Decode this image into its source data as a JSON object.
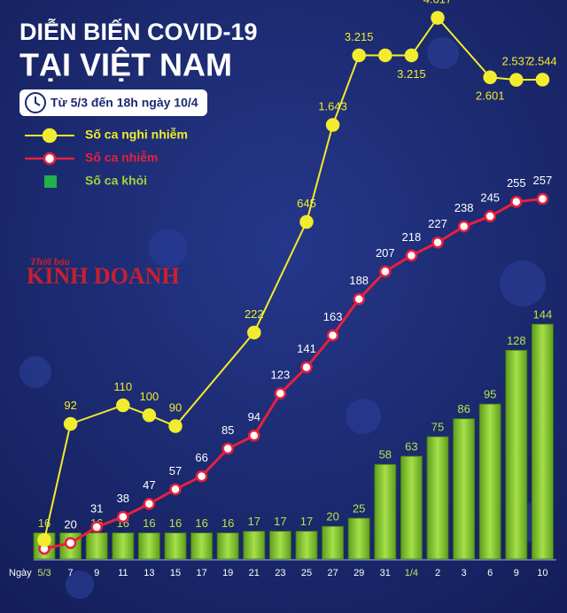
{
  "chart_data": {
    "type": "combo",
    "title": "DIỄN BIẾN COVID-19",
    "subtitle": "TẠI VIỆT NAM",
    "date_range": "Từ 5/3 đến 18h ngày 10/4",
    "watermark": {
      "top": "Thời báo",
      "main": "KINH DOANH"
    },
    "x_label": "Ngày",
    "categories": [
      "5/3",
      "7",
      "9",
      "11",
      "13",
      "15",
      "17",
      "19",
      "21",
      "23",
      "25",
      "27",
      "29",
      "31",
      "1/4",
      "2",
      "3",
      "6",
      "9",
      "10"
    ],
    "series": [
      {
        "name": "Số ca nghi nhiễm",
        "type": "line",
        "color": "#f2ec2e",
        "log": true,
        "ylim": [
          25,
          4700
        ],
        "values": [
          30,
          92,
          null,
          110,
          100,
          90,
          null,
          null,
          222,
          null,
          645,
          1643,
          3215,
          3215,
          3215,
          4617,
          null,
          2601,
          2537,
          2544
        ],
        "value_labels": [
          null,
          "92",
          null,
          "110",
          "100",
          "90",
          null,
          null,
          "222",
          null,
          "645",
          "1.643",
          "3.215",
          null,
          "3.215",
          "4.617",
          null,
          "2.601",
          "2.537",
          "2.544"
        ]
      },
      {
        "name": "Số ca nhiễm",
        "type": "line",
        "color": "#e8203c",
        "ylim": [
          9,
          383
        ],
        "values": [
          16,
          20,
          31,
          38,
          47,
          57,
          66,
          85,
          94,
          123,
          141,
          163,
          188,
          207,
          218,
          227,
          238,
          245,
          255,
          257
        ],
        "value_labels": [
          null,
          "20",
          "31",
          "38",
          "47",
          "57",
          "66",
          "85",
          "94",
          "123",
          "141",
          "163",
          "188",
          "207",
          "218",
          "227",
          "238",
          "245",
          "255",
          "257"
        ]
      },
      {
        "name": "Số ca khỏi",
        "type": "bar",
        "color": "#7fc62a",
        "ylim": [
          0,
          333
        ],
        "values": [
          16,
          16,
          16,
          16,
          16,
          16,
          16,
          16,
          17,
          17,
          17,
          20,
          25,
          58,
          63,
          75,
          86,
          95,
          128,
          144
        ],
        "value_labels": [
          "16",
          null,
          "16",
          "16",
          "16",
          "16",
          "16",
          "16",
          "17",
          "17",
          "17",
          "20",
          "25",
          "58",
          "63",
          "75",
          "86",
          "95",
          "128",
          "144"
        ]
      }
    ]
  }
}
